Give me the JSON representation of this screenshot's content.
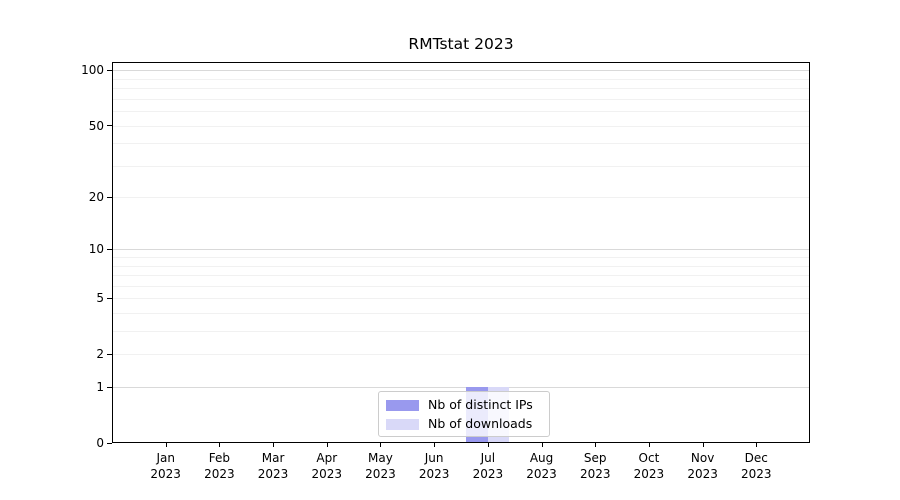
{
  "chart_data": {
    "type": "bar",
    "title": "RMTstat 2023",
    "categories": [
      "Jan",
      "Feb",
      "Mar",
      "Apr",
      "May",
      "Jun",
      "Jul",
      "Aug",
      "Sep",
      "Oct",
      "Nov",
      "Dec"
    ],
    "x_year_label": "2023",
    "series": [
      {
        "name": "Nb of distinct IPs",
        "color": "#9999ee",
        "values": [
          0,
          0,
          0,
          0,
          0,
          0,
          1,
          0,
          0,
          0,
          0,
          0
        ]
      },
      {
        "name": "Nb of downloads",
        "color": "#d9d9f8",
        "values": [
          0,
          0,
          0,
          0,
          0,
          0,
          1,
          0,
          0,
          0,
          0,
          0
        ]
      }
    ],
    "y_ticks": [
      100,
      50,
      20,
      10,
      5,
      2,
      1,
      0
    ],
    "y_scale": "log1p",
    "ylim": [
      0,
      111
    ],
    "grid": "on",
    "legend_position": "lower center",
    "colors": {
      "axis": "#000000",
      "grid_major": "#d9d9d9",
      "grid_minor": "#f1f1f1",
      "legend_border": "#cccccc"
    }
  }
}
